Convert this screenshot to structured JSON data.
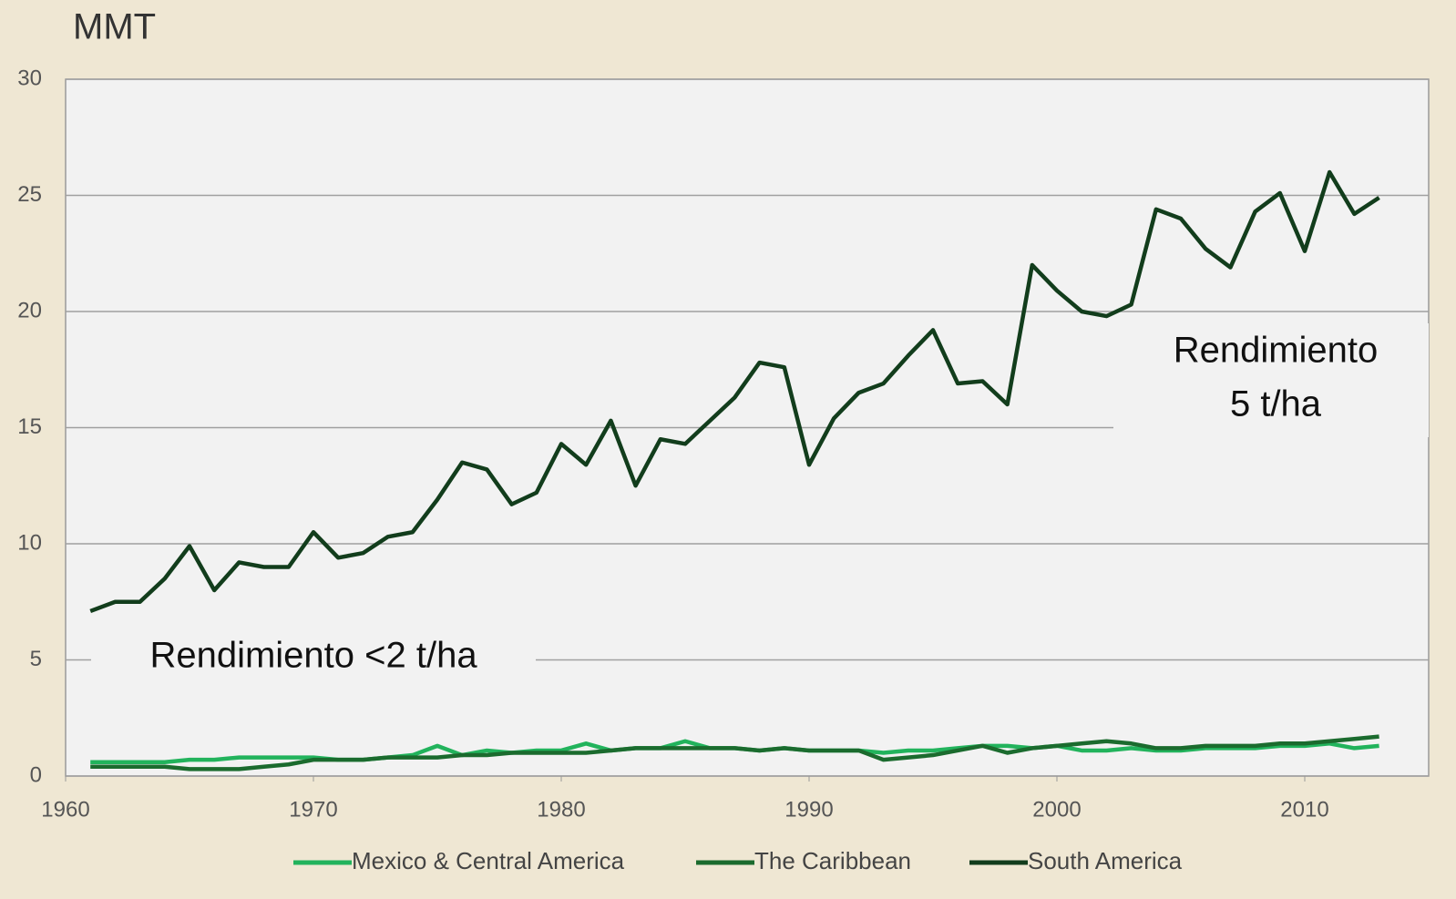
{
  "chart_data": {
    "type": "line",
    "y_axis_label": "MMT",
    "x": [
      1961,
      1962,
      1963,
      1964,
      1965,
      1966,
      1967,
      1968,
      1969,
      1970,
      1971,
      1972,
      1973,
      1974,
      1975,
      1976,
      1977,
      1978,
      1979,
      1980,
      1981,
      1982,
      1983,
      1984,
      1985,
      1986,
      1987,
      1988,
      1989,
      1990,
      1991,
      1992,
      1993,
      1994,
      1995,
      1996,
      1997,
      1998,
      1999,
      2000,
      2001,
      2002,
      2003,
      2004,
      2005,
      2006,
      2007,
      2008,
      2009,
      2010,
      2011,
      2012,
      2013
    ],
    "series": [
      {
        "name": "Mexico & Central America",
        "color": "#22b35c",
        "values": [
          0.6,
          0.6,
          0.6,
          0.6,
          0.7,
          0.7,
          0.8,
          0.8,
          0.8,
          0.8,
          0.7,
          0.7,
          0.8,
          0.9,
          1.3,
          0.9,
          1.1,
          1.0,
          1.1,
          1.1,
          1.4,
          1.1,
          1.2,
          1.2,
          1.5,
          1.2,
          1.2,
          1.1,
          1.2,
          1.1,
          1.1,
          1.1,
          1.0,
          1.1,
          1.1,
          1.2,
          1.3,
          1.3,
          1.2,
          1.3,
          1.1,
          1.1,
          1.2,
          1.1,
          1.1,
          1.2,
          1.2,
          1.2,
          1.3,
          1.3,
          1.4,
          1.2,
          1.3
        ]
      },
      {
        "name": "The Caribbean",
        "color": "#1b6b2e",
        "values": [
          0.4,
          0.4,
          0.4,
          0.4,
          0.3,
          0.3,
          0.3,
          0.4,
          0.5,
          0.7,
          0.7,
          0.7,
          0.8,
          0.8,
          0.8,
          0.9,
          0.9,
          1.0,
          1.0,
          1.0,
          1.0,
          1.1,
          1.2,
          1.2,
          1.2,
          1.2,
          1.2,
          1.1,
          1.2,
          1.1,
          1.1,
          1.1,
          0.7,
          0.8,
          0.9,
          1.1,
          1.3,
          1.0,
          1.2,
          1.3,
          1.4,
          1.5,
          1.4,
          1.2,
          1.2,
          1.3,
          1.3,
          1.3,
          1.4,
          1.4,
          1.5,
          1.6,
          1.7
        ]
      },
      {
        "name": "South America",
        "color": "#123d1c",
        "values": [
          7.1,
          7.5,
          7.5,
          8.5,
          9.9,
          8.0,
          9.2,
          9.0,
          9.0,
          10.5,
          9.4,
          9.6,
          10.3,
          10.5,
          11.9,
          13.5,
          13.2,
          11.7,
          12.2,
          14.3,
          13.4,
          15.3,
          12.5,
          14.5,
          14.3,
          15.3,
          16.3,
          17.8,
          17.6,
          13.4,
          15.4,
          16.5,
          16.9,
          18.1,
          19.2,
          16.9,
          17.0,
          16.0,
          22.0,
          20.9,
          20.0,
          19.8,
          20.3,
          24.4,
          24.0,
          22.7,
          21.9,
          24.3,
          25.1,
          22.6,
          26.0,
          24.2,
          24.9
        ]
      }
    ],
    "xlim": [
      1960,
      2015
    ],
    "xticks": [
      1960,
      1970,
      1980,
      1990,
      2000,
      2010
    ],
    "ylim": [
      0,
      30
    ],
    "yticks": [
      0,
      5,
      10,
      15,
      20,
      25,
      30
    ],
    "grid": true,
    "legend": "bottom",
    "annotations": [
      {
        "lines": [
          "Rendimiento <2 t/ha"
        ]
      },
      {
        "lines": [
          "Rendimiento",
          "5 t/ha"
        ]
      }
    ]
  }
}
